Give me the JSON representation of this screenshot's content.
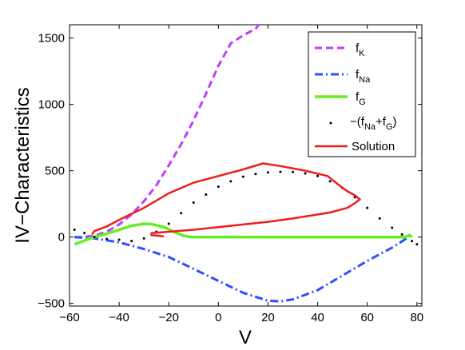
{
  "chart_data": {
    "type": "line",
    "xlabel": "V",
    "ylabel": "IV−Characteristics",
    "xlim": [
      -60,
      82
    ],
    "ylim": [
      -520,
      1600
    ],
    "xticks": [
      -60,
      -40,
      -20,
      0,
      20,
      40,
      60,
      80
    ],
    "yticks": [
      -500,
      0,
      500,
      1000,
      1500
    ],
    "xtick_labels": [
      "−60",
      "−40",
      "−20",
      "0",
      "20",
      "40",
      "60",
      "80"
    ],
    "ytick_labels": [
      "−500",
      "0",
      "500",
      "1000",
      "1500"
    ],
    "legend_position": "top-right",
    "series": [
      {
        "name": "fK",
        "legend_main": "f",
        "legend_sub": "K",
        "color": "#bf3fff",
        "style": "dashed",
        "points": [
          [
            -58,
            0
          ],
          [
            -55,
            0
          ],
          [
            -50,
            10
          ],
          [
            -45,
            40
          ],
          [
            -40,
            95
          ],
          [
            -35,
            170
          ],
          [
            -30,
            270
          ],
          [
            -25,
            390
          ],
          [
            -20,
            540
          ],
          [
            -15,
            700
          ],
          [
            -10,
            880
          ],
          [
            -5,
            1080
          ],
          [
            0,
            1290
          ],
          [
            5,
            1460
          ],
          [
            10,
            1520
          ],
          [
            15,
            1570
          ],
          [
            18,
            1640
          ]
        ]
      },
      {
        "name": "fNa",
        "legend_main": "f",
        "legend_sub": "Na",
        "color": "#2a4fff",
        "style": "dashdot",
        "points": [
          [
            -58,
            0
          ],
          [
            -50,
            -10
          ],
          [
            -40,
            -40
          ],
          [
            -30,
            -90
          ],
          [
            -20,
            -150
          ],
          [
            -10,
            -240
          ],
          [
            0,
            -330
          ],
          [
            10,
            -420
          ],
          [
            20,
            -480
          ],
          [
            25,
            -485
          ],
          [
            30,
            -470
          ],
          [
            40,
            -400
          ],
          [
            50,
            -290
          ],
          [
            60,
            -180
          ],
          [
            70,
            -80
          ],
          [
            75,
            -20
          ],
          [
            78,
            20
          ]
        ]
      },
      {
        "name": "fG",
        "legend_main": "f",
        "legend_sub": "G",
        "color": "#66ee22",
        "style": "solid",
        "points": [
          [
            -58,
            -55
          ],
          [
            -53,
            -20
          ],
          [
            -50,
            0
          ],
          [
            -45,
            25
          ],
          [
            -40,
            55
          ],
          [
            -35,
            85
          ],
          [
            -30,
            100
          ],
          [
            -27,
            98
          ],
          [
            -22,
            75
          ],
          [
            -18,
            40
          ],
          [
            -14,
            10
          ],
          [
            -11,
            0
          ],
          [
            0,
            0
          ],
          [
            20,
            0
          ],
          [
            40,
            0
          ],
          [
            60,
            0
          ],
          [
            75,
            0
          ],
          [
            77,
            15
          ],
          [
            78,
            0
          ]
        ]
      },
      {
        "name": "−(fNa+fG)",
        "legend_prefix": "−(f",
        "legend_sub1": "Na",
        "legend_mid": "+f",
        "legend_sub2": "G",
        "legend_suffix": ")",
        "color": "#000000",
        "style": "dotted",
        "points": [
          [
            -58,
            55
          ],
          [
            -54,
            30
          ],
          [
            -50,
            0
          ],
          [
            -45,
            -15
          ],
          [
            -40,
            -20
          ],
          [
            -35,
            -30
          ],
          [
            -30,
            -10
          ],
          [
            -25,
            40
          ],
          [
            -20,
            100
          ],
          [
            -15,
            180
          ],
          [
            -10,
            260
          ],
          [
            -5,
            320
          ],
          [
            0,
            380
          ],
          [
            5,
            420
          ],
          [
            10,
            455
          ],
          [
            15,
            475
          ],
          [
            20,
            487
          ],
          [
            25,
            492
          ],
          [
            30,
            490
          ],
          [
            35,
            480
          ],
          [
            40,
            460
          ],
          [
            45,
            420
          ],
          [
            50,
            370
          ],
          [
            55,
            300
          ],
          [
            60,
            220
          ],
          [
            65,
            140
          ],
          [
            70,
            70
          ],
          [
            74,
            20
          ],
          [
            78,
            -30
          ],
          [
            80,
            -55
          ]
        ]
      },
      {
        "name": "Solution",
        "legend_main": "Solution",
        "color": "#ee1c1c",
        "style": "solid",
        "points": [
          [
            -51,
            20
          ],
          [
            -50,
            45
          ],
          [
            -45,
            80
          ],
          [
            -40,
            130
          ],
          [
            -30,
            220
          ],
          [
            -20,
            330
          ],
          [
            -10,
            410
          ],
          [
            0,
            460
          ],
          [
            10,
            510
          ],
          [
            18,
            555
          ],
          [
            25,
            535
          ],
          [
            35,
            500
          ],
          [
            44,
            460
          ],
          [
            48,
            400
          ],
          [
            52,
            345
          ],
          [
            55,
            315
          ],
          [
            57,
            285
          ],
          [
            55,
            255
          ],
          [
            52,
            220
          ],
          [
            45,
            185
          ],
          [
            30,
            140
          ],
          [
            20,
            115
          ],
          [
            10,
            95
          ],
          [
            0,
            75
          ],
          [
            -10,
            55
          ],
          [
            -20,
            40
          ],
          [
            -27,
            30
          ],
          [
            -27,
            15
          ],
          [
            -22,
            5
          ]
        ]
      }
    ]
  }
}
